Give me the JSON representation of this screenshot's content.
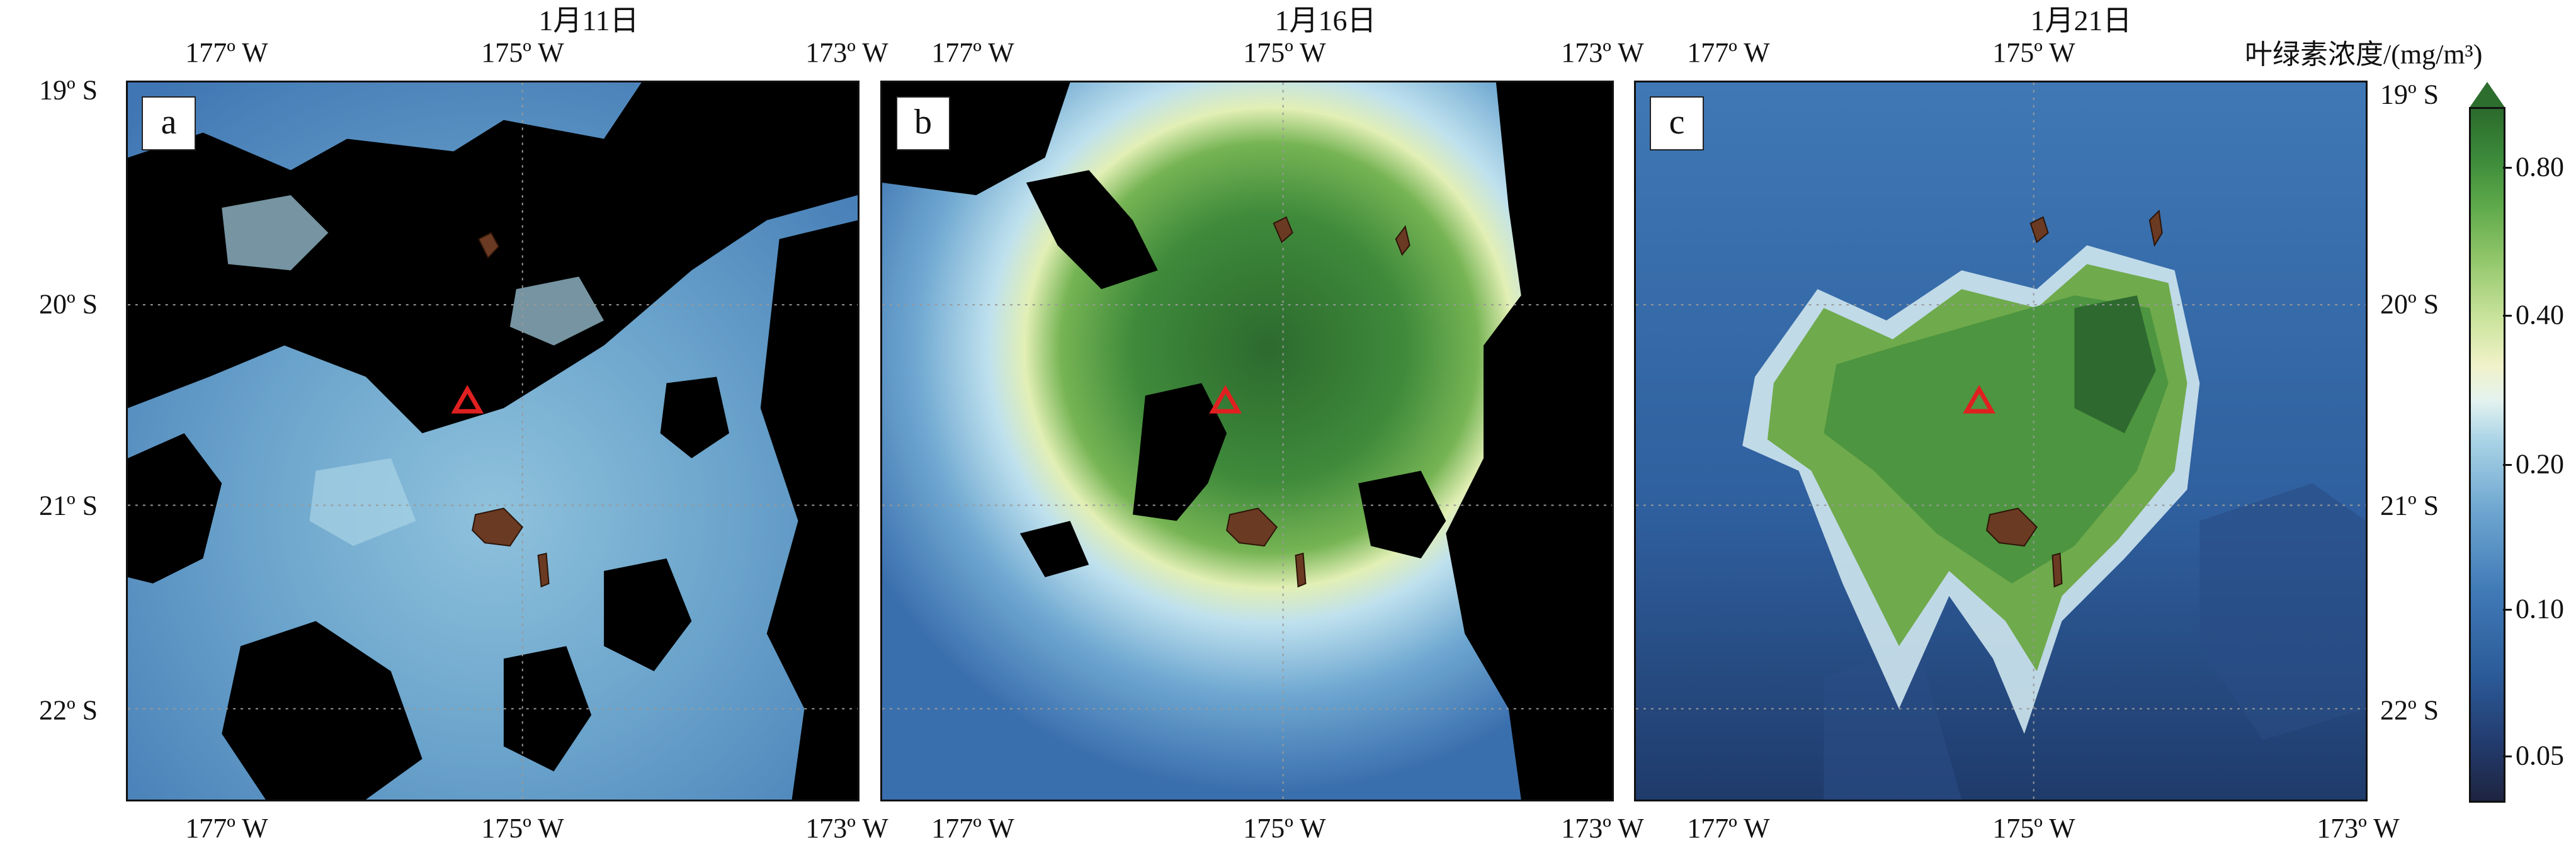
{
  "panels": [
    {
      "letter": "a",
      "date": "1月11日"
    },
    {
      "letter": "b",
      "date": "1月16日"
    },
    {
      "letter": "c",
      "date": "1月21日"
    }
  ],
  "lon_labels": [
    "177º W",
    "175º W",
    "173º W"
  ],
  "lat_labels": [
    "19º S",
    "20º S",
    "21º S",
    "22º S"
  ],
  "colorbar": {
    "title": "叶绿素浓度/(mg/m³)",
    "ticks": [
      "0.80",
      "0.40",
      "0.20",
      "0.10",
      "0.05"
    ],
    "colors": {
      "low": "#1e2440",
      "mid": "#e5f3ef",
      "high": "#2b6a2c",
      "missing": "#000000"
    }
  },
  "markers": {
    "volcano": "warning-triangle-icon",
    "volcano_color": "#e02020"
  }
}
